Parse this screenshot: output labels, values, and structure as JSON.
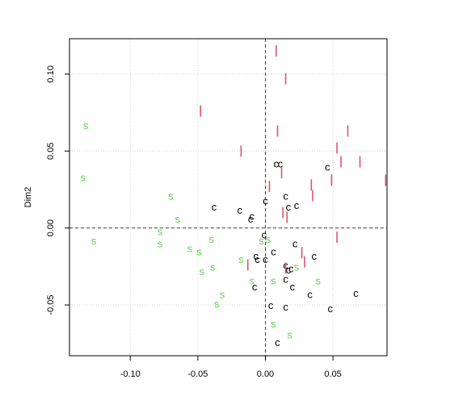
{
  "chart_data": {
    "type": "scatter",
    "title": "",
    "xlabel": "",
    "ylabel": "Dim2",
    "xlim": [
      -0.145,
      0.09
    ],
    "ylim": [
      -0.083,
      0.123
    ],
    "x_ticks": [
      -0.1,
      -0.05,
      0.0,
      0.05
    ],
    "x_tick_labels": [
      "-0.10",
      "-0.05",
      "0.00",
      "0.05"
    ],
    "y_ticks": [
      -0.05,
      0.0,
      0.05,
      0.1
    ],
    "y_tick_labels": [
      "-0.05",
      "0.00",
      "0.05",
      "0.10"
    ],
    "grid": true,
    "reference_lines": {
      "x": 0,
      "y": 0
    },
    "series": [
      {
        "marker": "S",
        "color": "#61D04F",
        "points": [
          [
            -0.133,
            0.067
          ],
          [
            -0.135,
            0.033
          ],
          [
            -0.127,
            -0.008
          ],
          [
            -0.078,
            -0.002
          ],
          [
            -0.078,
            -0.01
          ],
          [
            -0.07,
            0.021
          ],
          [
            -0.065,
            0.006
          ],
          [
            -0.056,
            -0.013
          ],
          [
            -0.049,
            -0.015
          ],
          [
            -0.047,
            -0.028
          ],
          [
            -0.04,
            -0.007
          ],
          [
            -0.039,
            -0.025
          ],
          [
            -0.032,
            -0.043
          ],
          [
            -0.036,
            -0.049
          ],
          [
            -0.018,
            -0.02
          ],
          [
            -0.01,
            -0.034
          ],
          [
            -0.003,
            -0.008
          ],
          [
            0.002,
            -0.007
          ],
          [
            0.006,
            -0.034
          ],
          [
            0.023,
            -0.025
          ],
          [
            0.039,
            -0.034
          ],
          [
            0.006,
            -0.062
          ],
          [
            0.018,
            -0.069
          ]
        ]
      },
      {
        "marker": "C",
        "color": "#000000",
        "points": [
          [
            -0.038,
            0.014
          ],
          [
            -0.019,
            0.012
          ],
          [
            -0.011,
            0.006
          ],
          [
            -0.01,
            0.008
          ],
          [
            0.0,
            0.018
          ],
          [
            0.008,
            0.042
          ],
          [
            0.011,
            0.042
          ],
          [
            0.015,
            0.021
          ],
          [
            0.017,
            0.014
          ],
          [
            0.023,
            0.015
          ],
          [
            0.046,
            0.04
          ],
          [
            -0.001,
            -0.004
          ],
          [
            -0.007,
            -0.018
          ],
          [
            -0.006,
            -0.02
          ],
          [
            0.0,
            -0.02
          ],
          [
            0.006,
            -0.015
          ],
          [
            0.015,
            -0.024
          ],
          [
            0.019,
            -0.026
          ],
          [
            0.017,
            -0.027
          ],
          [
            0.022,
            -0.01
          ],
          [
            0.036,
            -0.018
          ],
          [
            0.015,
            -0.033
          ],
          [
            0.02,
            -0.038
          ],
          [
            0.033,
            -0.043
          ],
          [
            -0.008,
            -0.038
          ],
          [
            0.004,
            -0.05
          ],
          [
            0.015,
            -0.051
          ],
          [
            0.048,
            -0.052
          ],
          [
            0.067,
            -0.042
          ],
          [
            0.009,
            -0.074
          ]
        ]
      },
      {
        "marker": "I",
        "color": "#DF536B",
        "points": [
          [
            0.008,
            0.115
          ],
          [
            0.015,
            0.097
          ],
          [
            -0.048,
            0.076
          ],
          [
            0.009,
            0.063
          ],
          [
            0.061,
            0.063
          ],
          [
            -0.018,
            0.05
          ],
          [
            0.053,
            0.052
          ],
          [
            0.07,
            0.043
          ],
          [
            0.056,
            0.043
          ],
          [
            0.012,
            0.036
          ],
          [
            0.049,
            0.031
          ],
          [
            0.089,
            0.031
          ],
          [
            0.034,
            0.028
          ],
          [
            0.003,
            0.027
          ],
          [
            0.035,
            0.021
          ],
          [
            0.013,
            0.01
          ],
          [
            0.016,
            0.007
          ],
          [
            0.053,
            -0.006
          ],
          [
            0.027,
            -0.016
          ],
          [
            0.029,
            -0.022
          ],
          [
            -0.013,
            -0.024
          ],
          [
            0.015,
            -0.026
          ]
        ]
      }
    ]
  }
}
